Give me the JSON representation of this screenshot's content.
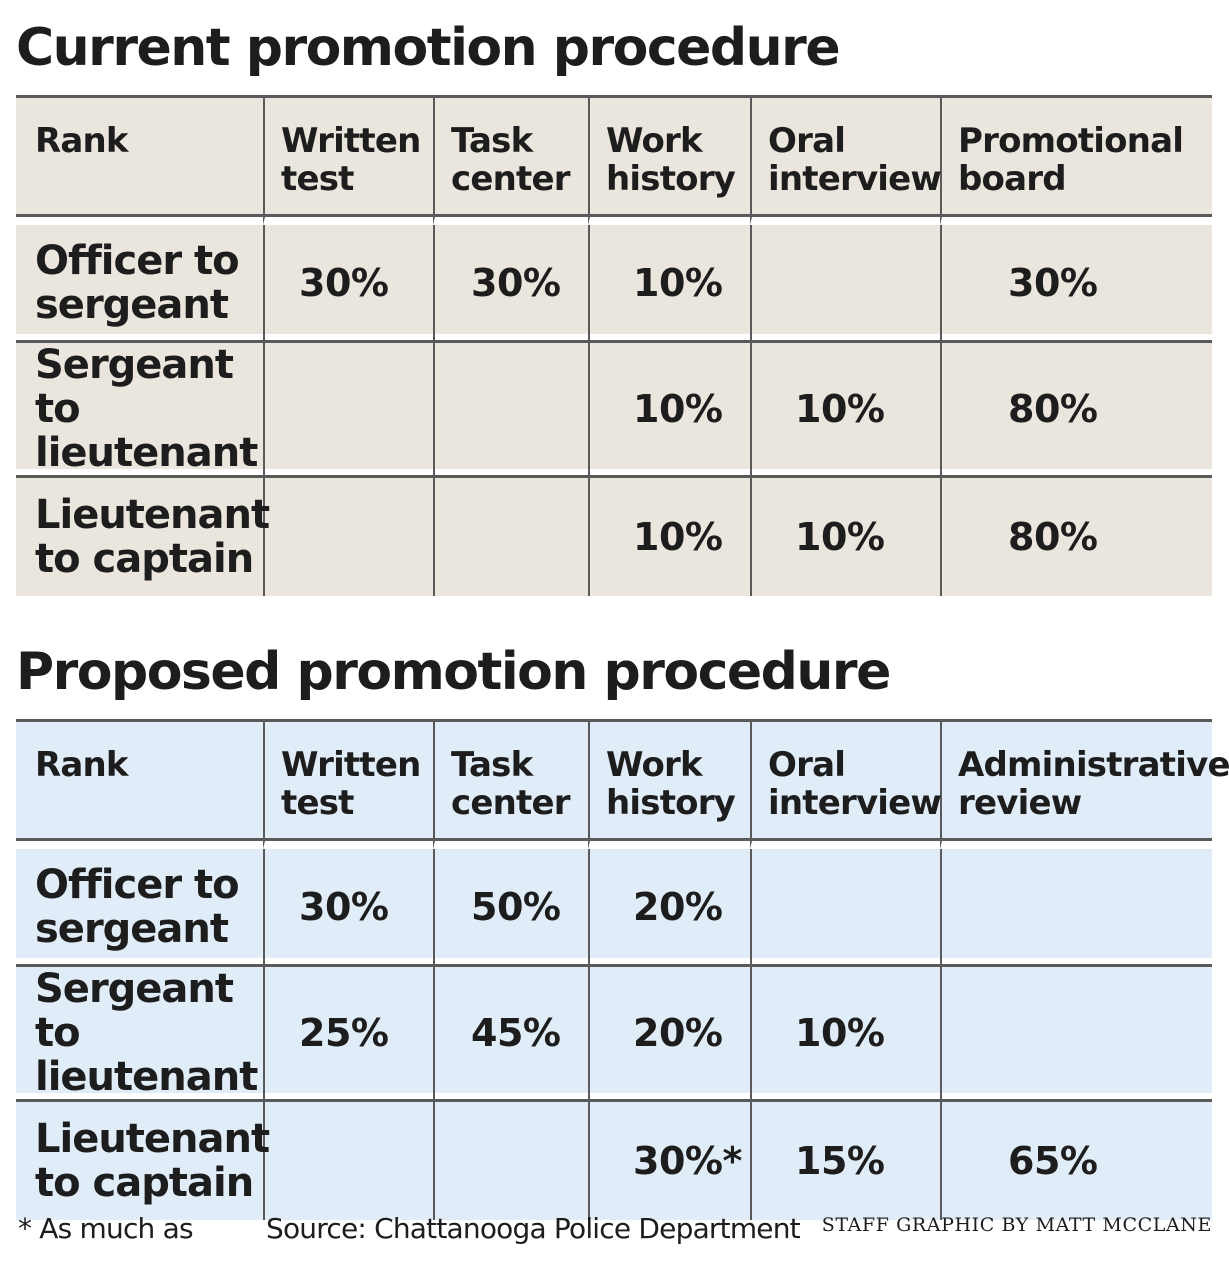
{
  "chart_data": [
    {
      "type": "table",
      "title": "Current promotion procedure",
      "columns": [
        "Rank",
        "Written test",
        "Task center",
        "Work history",
        "Oral interview",
        "Promotional board"
      ],
      "rows": [
        {
          "rank": "Officer to sergeant",
          "values": [
            "30%",
            "30%",
            "10%",
            "",
            "30%"
          ]
        },
        {
          "rank": "Sergeant to lieutenant",
          "values": [
            "",
            "",
            "10%",
            "10%",
            "80%"
          ]
        },
        {
          "rank": "Lieutenant to captain",
          "values": [
            "",
            "",
            "10%",
            "10%",
            "80%"
          ]
        }
      ],
      "colors": {
        "background": "#ebe6dd"
      }
    },
    {
      "type": "table",
      "title": "Proposed promotion procedure",
      "columns": [
        "Rank",
        "Written test",
        "Task center",
        "Work history",
        "Oral interview",
        "Administrative review"
      ],
      "rows": [
        {
          "rank": "Officer to sergeant",
          "values": [
            "30%",
            "50%",
            "20%",
            "",
            ""
          ]
        },
        {
          "rank": "Sergeant to lieutenant",
          "values": [
            "25%",
            "45%",
            "20%",
            "10%",
            ""
          ]
        },
        {
          "rank": "Lieutenant to captain",
          "values": [
            "",
            "",
            "30%*",
            "15%",
            "65%"
          ]
        }
      ],
      "colors": {
        "background": "#e0edf9"
      }
    }
  ],
  "footnote": "* As much as",
  "source": "Source: Chattanooga Police Department",
  "credit": "STAFF GRAPHIC BY MATT MCCLANE"
}
